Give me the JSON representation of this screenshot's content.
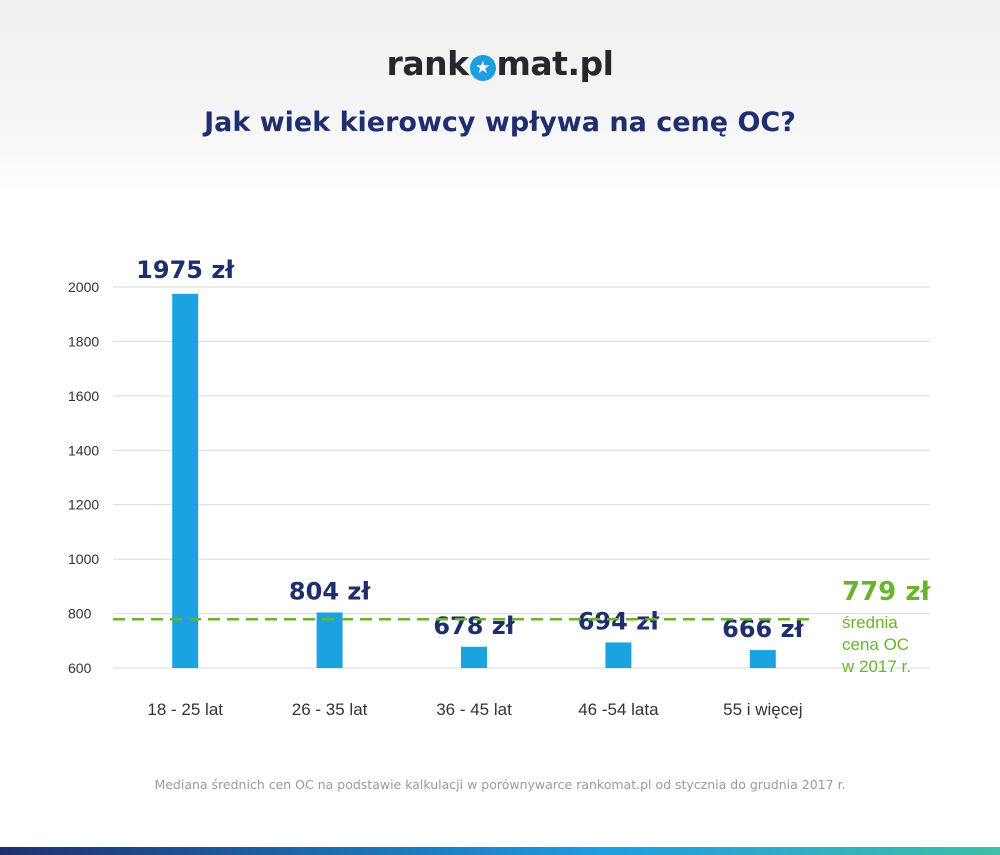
{
  "header": {
    "logo_left": "rank",
    "logo_right": "mat.pl",
    "logo_star": "★",
    "title": "Jak wiek kierowcy wpływa na cenę OC?"
  },
  "chart_data": {
    "type": "bar",
    "categories": [
      "18 - 25 lat",
      "26 - 35 lat",
      "36 - 45 lat",
      "46 -54 lata",
      "55 i więcej"
    ],
    "values": [
      1975,
      804,
      678,
      694,
      666
    ],
    "value_labels": [
      "1975 zł",
      "804 zł",
      "678 zł",
      "694 zł",
      "666 zł"
    ],
    "ylim": [
      600,
      2000
    ],
    "yticks": [
      600,
      800,
      1000,
      1200,
      1400,
      1600,
      1800,
      2000
    ],
    "grid": true,
    "reference_line": {
      "value": 779,
      "label": "779 zł",
      "caption": [
        "średnia",
        "cena OC",
        "w 2017 r."
      ]
    },
    "colors": {
      "bar": "#1ba3e0",
      "value_label": "#1f2e6e",
      "reference": "#6ab42d",
      "grid": "#d9d9d9",
      "tick": "#333333"
    }
  },
  "footnote": "Mediana średnich cen OC na podstawie kalkulacji w porównywarce rankomat.pl od stycznia do grudnia 2017 r."
}
